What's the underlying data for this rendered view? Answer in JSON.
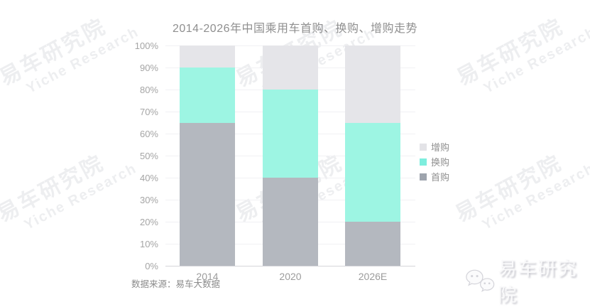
{
  "chart_data": {
    "type": "bar",
    "stacked": true,
    "title": "2014-2026年中国乘用车首购、换购、增购走势",
    "categories": [
      "2014",
      "2020",
      "2026E"
    ],
    "series": [
      {
        "name": "首购",
        "values": [
          65,
          40,
          20
        ],
        "color": "#b4b8bf"
      },
      {
        "name": "换购",
        "values": [
          25,
          40,
          45
        ],
        "color": "#9df5e3"
      },
      {
        "name": "增购",
        "values": [
          10,
          20,
          35
        ],
        "color": "#e5e5e9"
      }
    ],
    "y_ticks": [
      "0%",
      "10%",
      "20%",
      "30%",
      "40%",
      "50%",
      "60%",
      "70%",
      "80%",
      "90%",
      "100%"
    ],
    "ylim": [
      0,
      100
    ],
    "y_unit": "%",
    "grid": true,
    "legend_position": "right"
  },
  "legend": {
    "items": [
      {
        "label": "增购",
        "swatch": "#e3e3e7"
      },
      {
        "label": "换购",
        "swatch": "#7eeede"
      },
      {
        "label": "首购",
        "swatch": "#9ea4ad"
      }
    ]
  },
  "watermark": {
    "cn": "易车研究院",
    "en": "Yiche Research"
  },
  "footer": {
    "source_note": "数据来源：易车大数据"
  },
  "logo": {
    "label": "易车研究院",
    "icon": "wechat-icon"
  }
}
